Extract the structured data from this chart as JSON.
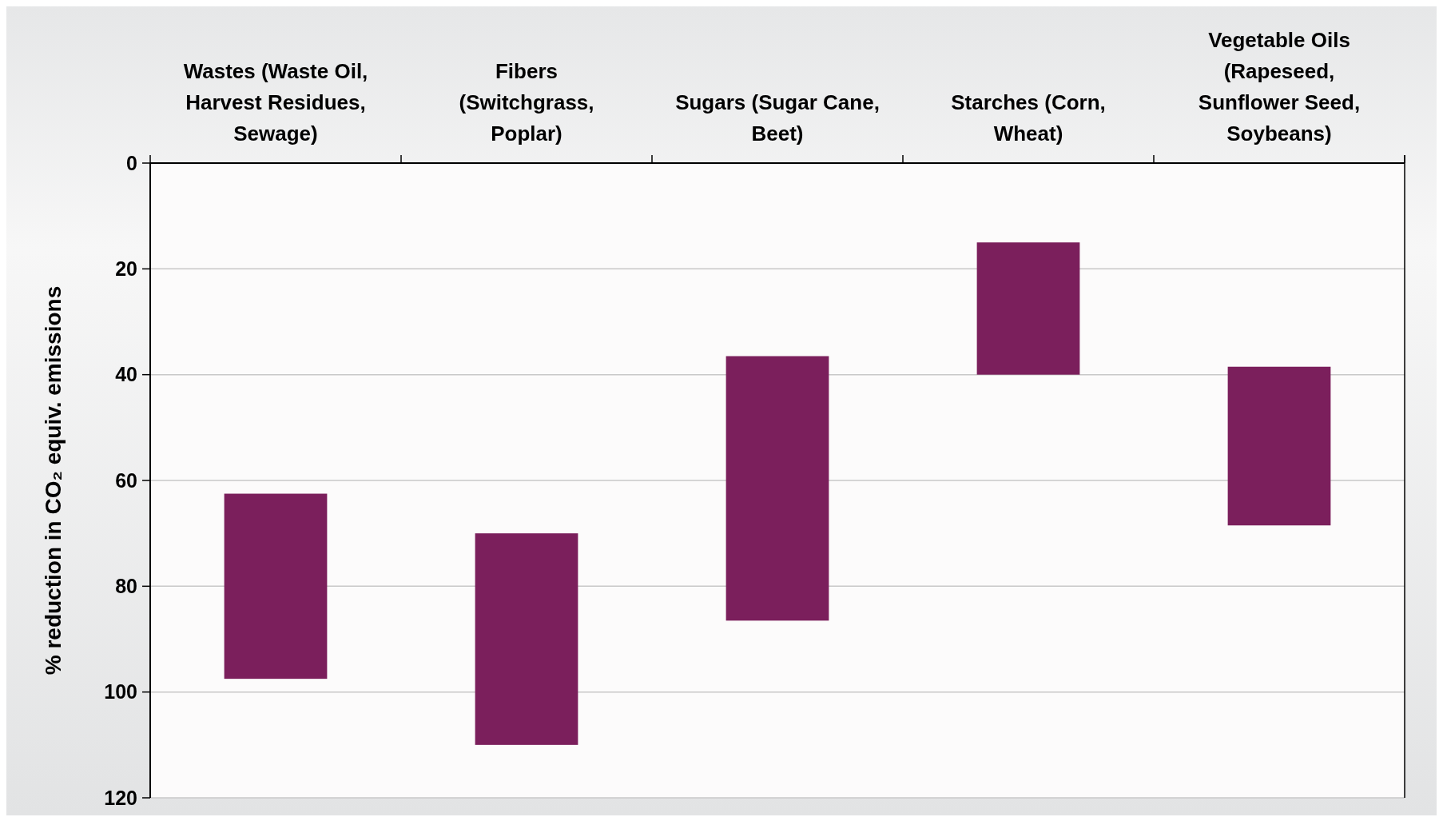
{
  "chart_data": {
    "type": "bar",
    "ylabel": "% reduction in CO₂ equiv. emissions",
    "categories": [
      "Wastes (Waste Oil, Harvest Residues, Sewage)",
      "Fibers (Switchgrass, Poplar)",
      "Sugars (Sugar Cane, Beet)",
      "Starches (Corn, Wheat)",
      "Vegetable Oils (Rapeseed, Sunflower Seed, Soybeans)"
    ],
    "values": [
      35,
      40,
      50,
      25,
      30
    ],
    "base": [
      62.5,
      70,
      36.5,
      15,
      38.5
    ],
    "color": "#7b1f5c",
    "ylim": [
      120,
      0
    ],
    "yticks": [
      0,
      20,
      40,
      60,
      80,
      100,
      120
    ],
    "grid": "y"
  }
}
